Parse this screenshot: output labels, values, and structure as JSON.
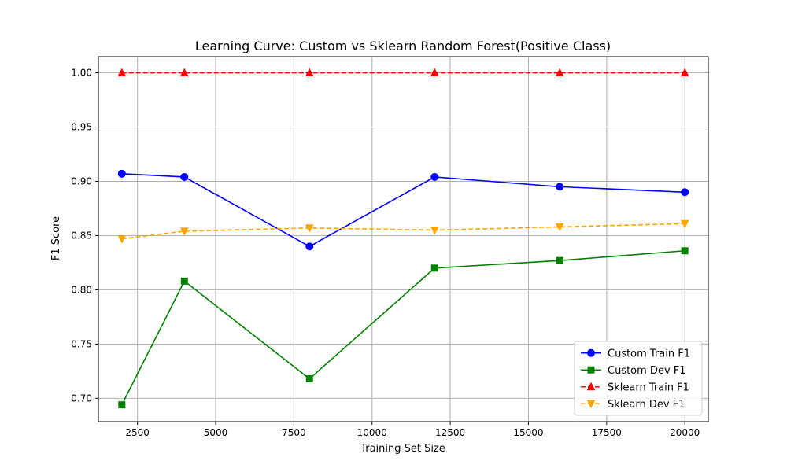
{
  "chart_data": {
    "type": "line",
    "title": "Learning Curve: Custom vs Sklearn Random Forest(Positive Class)",
    "xlabel": "Training Set Size",
    "ylabel": "F1 Score",
    "xlim": [
      1250,
      20750
    ],
    "ylim": [
      0.6785,
      1.0149
    ],
    "xticks": [
      2500,
      5000,
      7500,
      10000,
      12500,
      15000,
      17500,
      20000
    ],
    "yticks": [
      "0.70",
      "0.75",
      "0.80",
      "0.85",
      "0.90",
      "0.95",
      "1.00"
    ],
    "grid": true,
    "legend_position": "lower-right",
    "x": [
      2000,
      4000,
      8000,
      12000,
      16000,
      20000
    ],
    "series": [
      {
        "name": "Custom Train F1",
        "values": [
          0.907,
          0.904,
          0.84,
          0.904,
          0.895,
          0.89
        ],
        "color": "#0000ff",
        "marker": "circle",
        "dash": "solid"
      },
      {
        "name": "Custom Dev F1",
        "values": [
          0.694,
          0.808,
          0.718,
          0.82,
          0.827,
          0.836
        ],
        "color": "#008000",
        "marker": "square",
        "dash": "solid"
      },
      {
        "name": "Sklearn Train F1",
        "values": [
          1.0,
          1.0,
          1.0,
          1.0,
          1.0,
          1.0
        ],
        "color": "#ff0000",
        "marker": "triangle-up",
        "dash": "dashed"
      },
      {
        "name": "Sklearn Dev F1",
        "values": [
          0.847,
          0.854,
          0.857,
          0.855,
          0.858,
          0.861
        ],
        "color": "#ffa500",
        "marker": "triangle-down",
        "dash": "dashed"
      }
    ]
  }
}
